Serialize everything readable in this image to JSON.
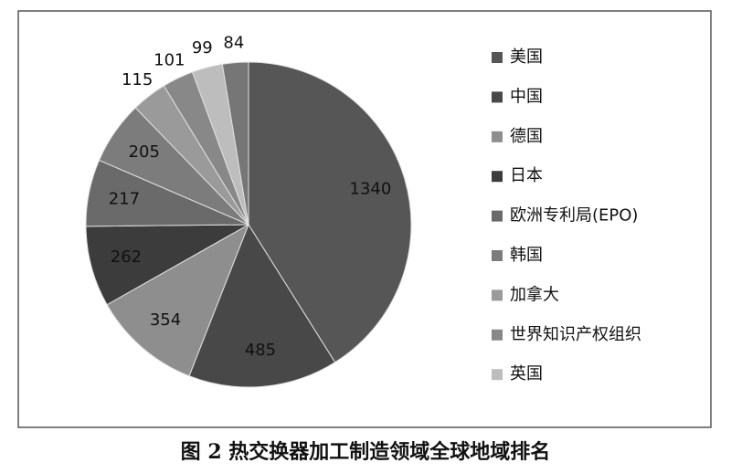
{
  "chart_data": {
    "type": "pie",
    "caption": "图 2 热交换器加工制造领域全球地域排名",
    "categories": [
      "美国",
      "中国",
      "德国",
      "日本",
      "欧洲专利局(EPO)",
      "韩国",
      "加拿大",
      "世界知识产权组织",
      "英国",
      null
    ],
    "values": [
      1340,
      485,
      354,
      262,
      217,
      205,
      115,
      101,
      99,
      84
    ],
    "colors": [
      "#565656",
      "#484848",
      "#8e8e8e",
      "#3c3c3c",
      "#6a6a6a",
      "#7c7c7c",
      "#9a9a9a",
      "#888888",
      "#bdbdbd",
      "#767676"
    ],
    "legend": "right"
  }
}
